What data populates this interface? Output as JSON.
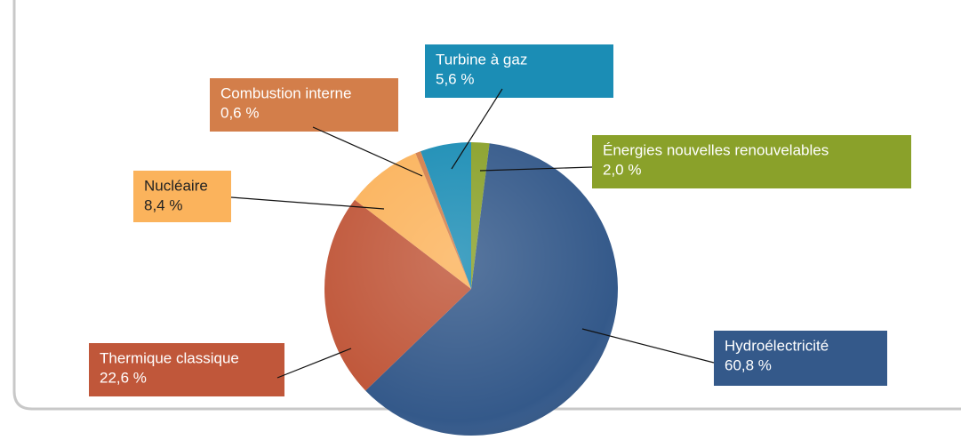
{
  "chart_data": {
    "type": "pie",
    "categories": [
      "Énergies nouvelles renouvelables",
      "Hydroélectricité",
      "Thermique classique",
      "Nucléaire",
      "Combustion interne",
      "Turbine à gaz"
    ],
    "values": [
      2.0,
      60.8,
      22.6,
      8.4,
      0.6,
      5.6
    ],
    "value_labels": [
      "2,0 %",
      "60,8 %",
      "22,6 %",
      "8,4 %",
      "0,6 %",
      "5,6 %"
    ],
    "colors": [
      "#8aa12a",
      "#34598a",
      "#c0573a",
      "#fbb35c",
      "#d37e4a",
      "#1b8db5"
    ]
  }
}
